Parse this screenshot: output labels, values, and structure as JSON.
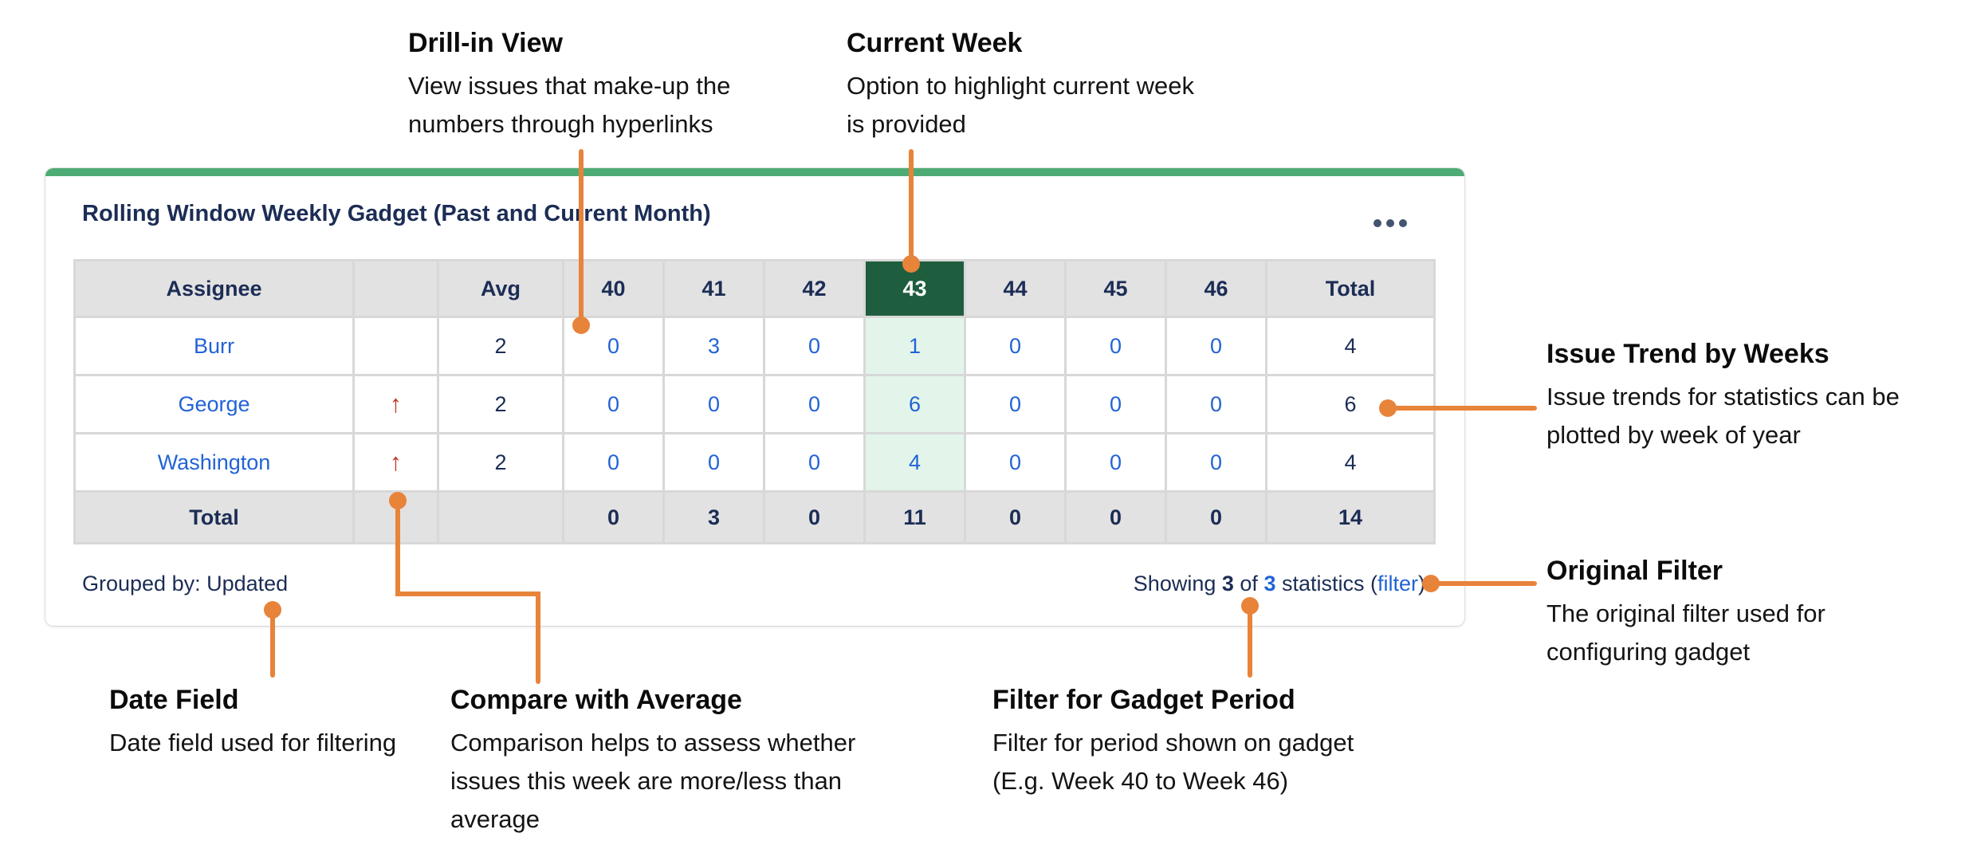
{
  "annotations": {
    "drill_in": {
      "title": "Drill-in View",
      "lines": [
        "View issues that make-up the",
        "numbers through hyperlinks"
      ]
    },
    "current_week": {
      "title": "Current Week",
      "lines": [
        "Option to highlight current week",
        "is provided"
      ]
    },
    "issue_trend": {
      "title": "Issue Trend by Weeks",
      "lines": [
        "Issue trends for statistics can be",
        "plotted by week of year"
      ]
    },
    "original_filter": {
      "title": "Original Filter",
      "lines": [
        "The original filter used for",
        "configuring gadget"
      ]
    },
    "date_field": {
      "title": "Date Field",
      "lines": [
        "Date field used for filtering"
      ]
    },
    "compare_average": {
      "title": "Compare with Average",
      "lines": [
        "Comparison helps to assess whether",
        "issues this week are more/less than",
        "average"
      ]
    },
    "gadget_period": {
      "title": "Filter for Gadget Period",
      "lines": [
        "Filter for period shown on gadget",
        "(E.g. Week 40 to Week 46)"
      ]
    }
  },
  "gadget": {
    "title": "Rolling Window Weekly Gadget (Past and Current Month)",
    "grouped_by": "Grouped by: Updated",
    "footer_right": {
      "prefix": "Showing ",
      "shown": "3",
      "mid": " of ",
      "total": "3",
      "suffix": " statistics (",
      "link": "filter",
      "close": ")"
    }
  },
  "table": {
    "columns": [
      "Assignee",
      "",
      "Avg",
      "40",
      "41",
      "42",
      "43",
      "44",
      "45",
      "46",
      "Total"
    ],
    "current_week_column": "43",
    "rows": [
      {
        "assignee": "Burr",
        "trend": "",
        "avg": "2",
        "weeks": [
          "0",
          "3",
          "0",
          "1",
          "0",
          "0",
          "0"
        ],
        "total": "4"
      },
      {
        "assignee": "George",
        "trend": "up",
        "avg": "2",
        "weeks": [
          "0",
          "0",
          "0",
          "6",
          "0",
          "0",
          "0"
        ],
        "total": "6"
      },
      {
        "assignee": "Washington",
        "trend": "up",
        "avg": "2",
        "weeks": [
          "0",
          "0",
          "0",
          "4",
          "0",
          "0",
          "0"
        ],
        "total": "4"
      }
    ],
    "total_row": {
      "label": "Total",
      "weeks": [
        "0",
        "3",
        "0",
        "11",
        "0",
        "0",
        "0"
      ],
      "total": "14"
    }
  },
  "icons": {
    "menu": "ellipsis-icon",
    "trend_up": "up-arrow-icon"
  },
  "colors": {
    "accent_orange": "#E8833A",
    "top_bar_green": "#4FAB75",
    "current_week_header_green": "#1E5E3E",
    "current_week_cell_green": "#E3F5EA",
    "link_blue": "#2263D6",
    "text_navy": "#1C2D55",
    "trend_arrow_red": "#C03522",
    "header_gray": "#E2E2E2",
    "grid_line_gray": "#D8D8D8"
  }
}
